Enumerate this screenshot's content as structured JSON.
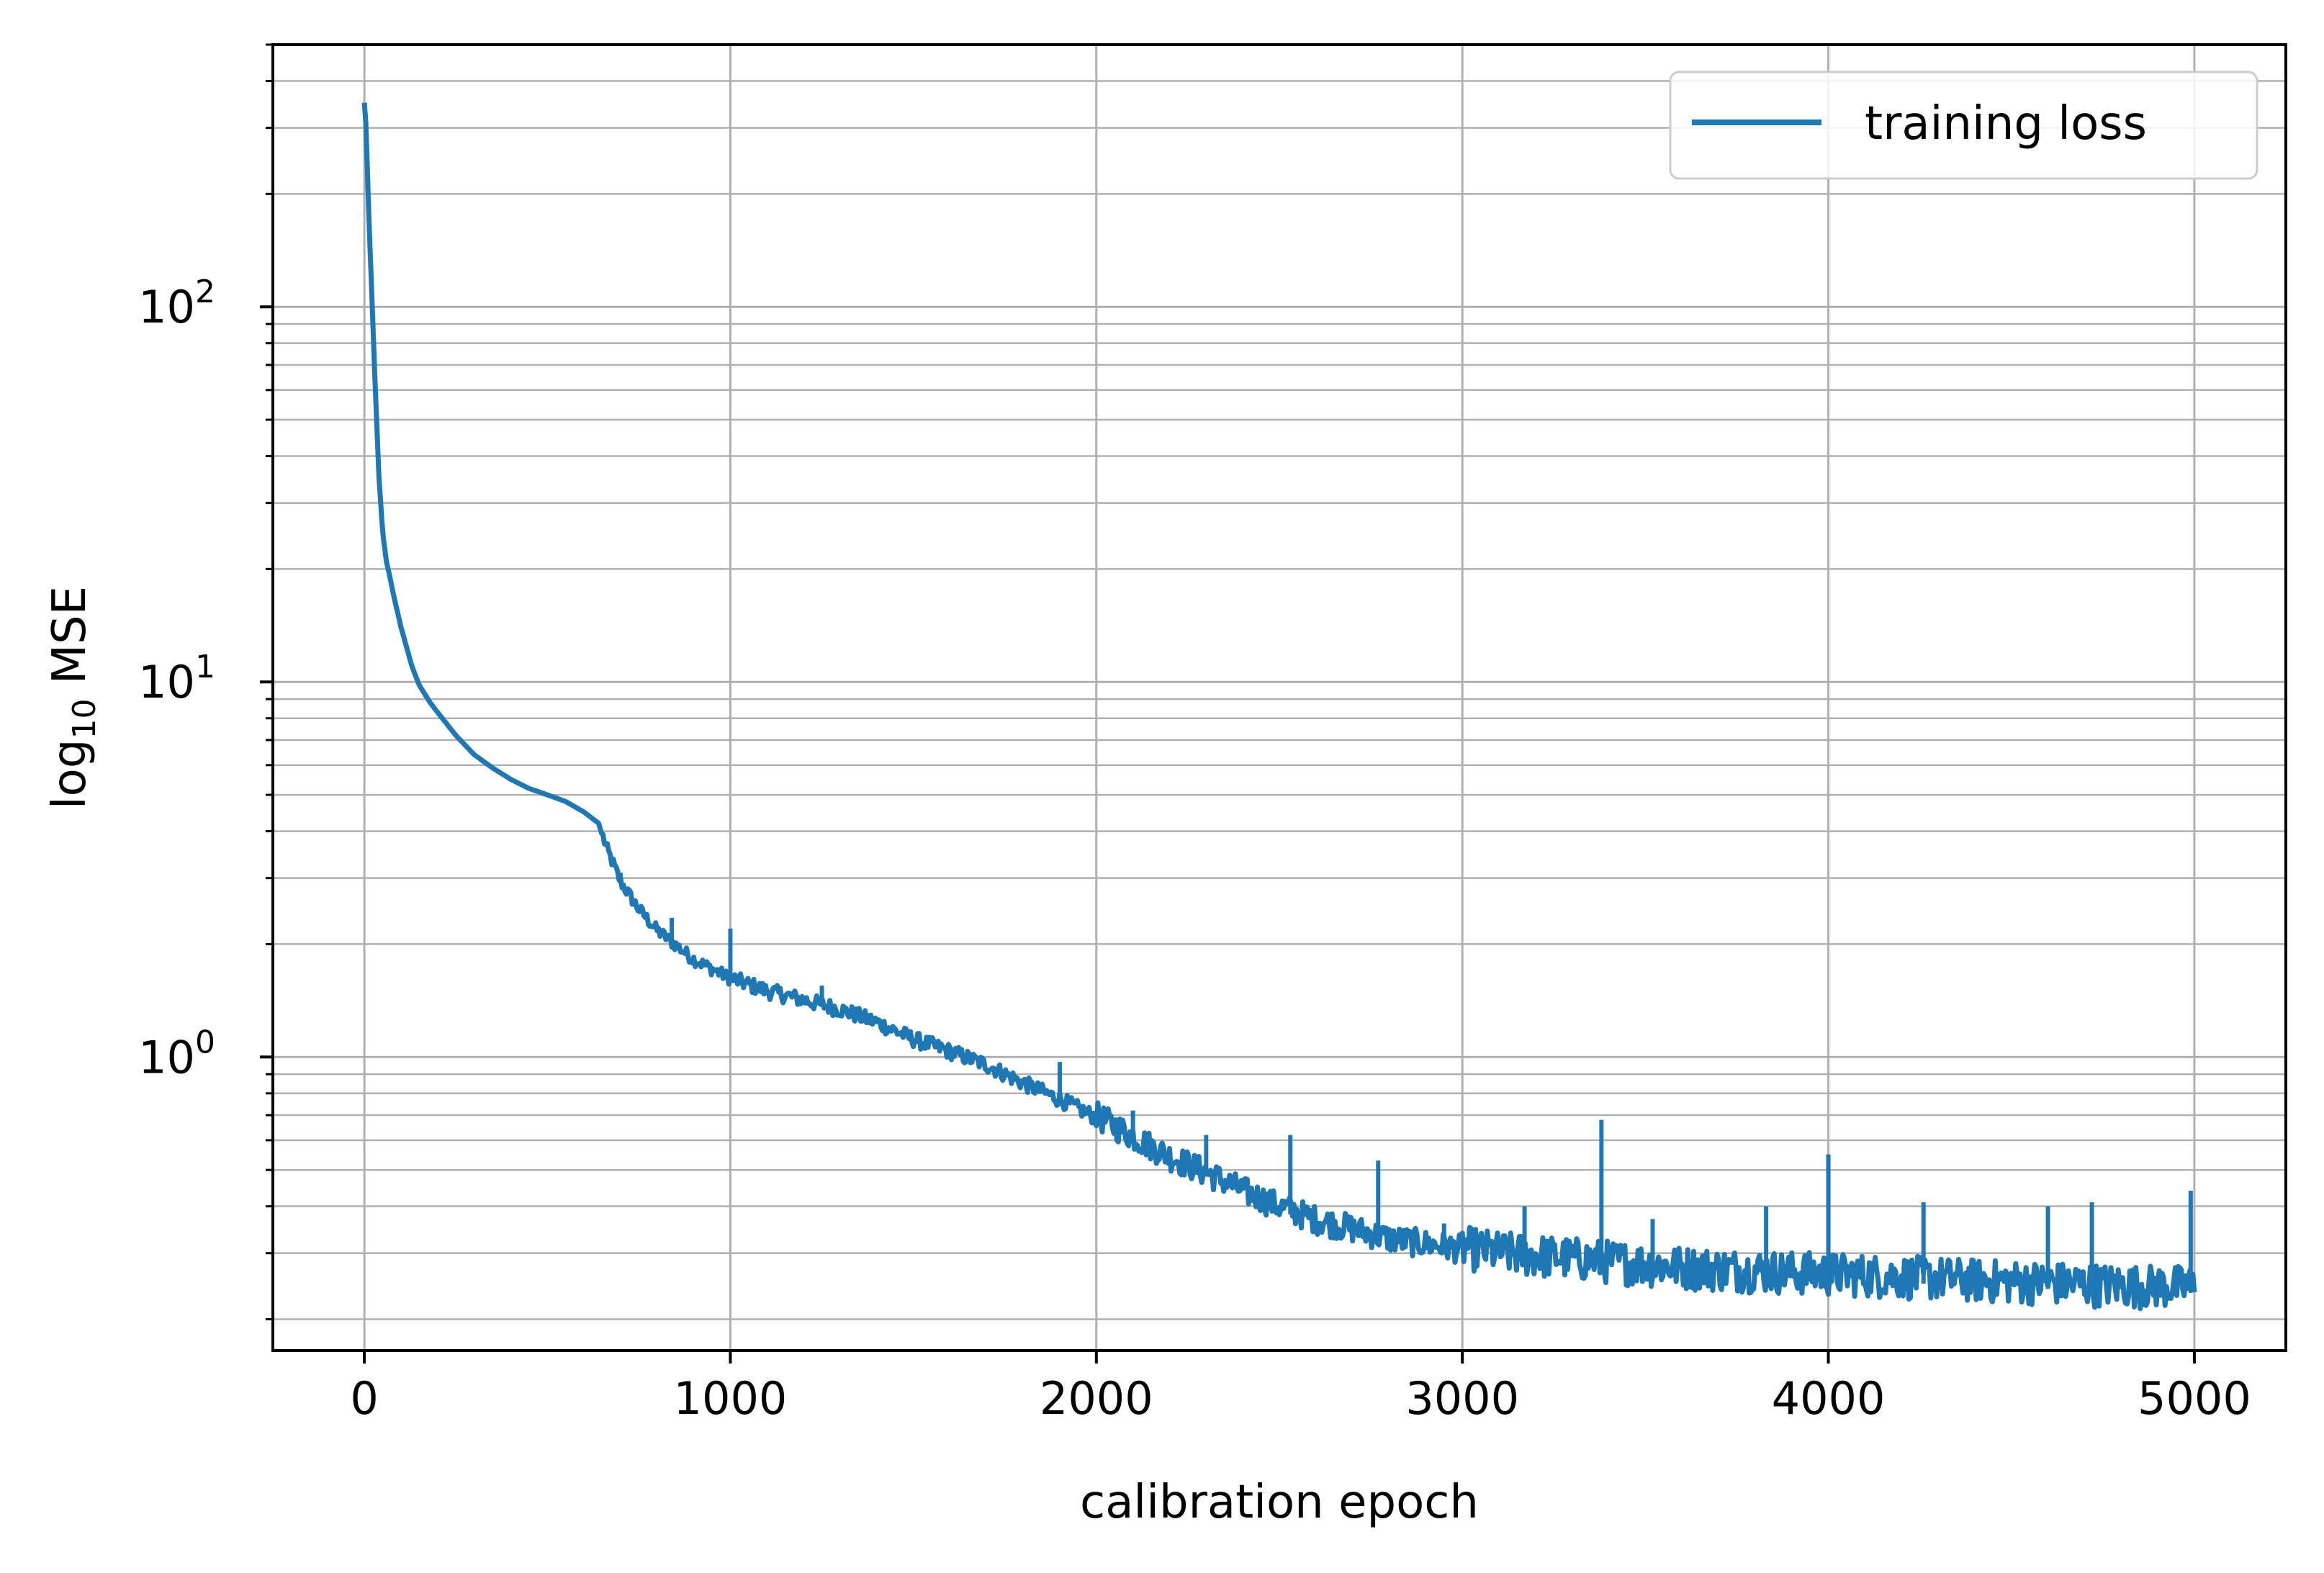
{
  "chart_data": {
    "type": "line",
    "xlabel": "calibration epoch",
    "ylabel_prefix": "log",
    "ylabel_subscript": "10",
    "ylabel_suffix": " MSE",
    "y_scale": "log",
    "xlim": [
      -250,
      5250
    ],
    "ylim": [
      0.165,
      500
    ],
    "x_ticks": [
      0,
      1000,
      2000,
      3000,
      4000,
      5000
    ],
    "x_tick_labels": [
      "0",
      "1000",
      "2000",
      "3000",
      "4000",
      "5000"
    ],
    "y_ticks": [
      {
        "value": 1,
        "base": "10",
        "exp": "0"
      },
      {
        "value": 10,
        "base": "10",
        "exp": "1"
      },
      {
        "value": 100,
        "base": "10",
        "exp": "2"
      }
    ],
    "grid": "major and minor",
    "legend": {
      "position": "upper right",
      "entries": [
        "training loss"
      ]
    },
    "series": [
      {
        "name": "training loss",
        "color": "#1f77b4",
        "x": [
          0,
          5,
          10,
          20,
          30,
          40,
          50,
          60,
          70,
          80,
          100,
          130,
          150,
          180,
          200,
          250,
          300,
          350,
          400,
          450,
          500,
          550,
          600,
          640,
          660,
          700,
          750,
          800,
          900,
          1000,
          1100,
          1200,
          1300,
          1400,
          1500,
          1600,
          1700,
          1800,
          1900,
          2000,
          2100,
          2200,
          2300,
          2400,
          2500,
          2600,
          2700,
          2800,
          2900,
          3000,
          3100,
          3200,
          3300,
          3400,
          3500,
          3600,
          3700,
          3800,
          3900,
          4000,
          4100,
          4200,
          4300,
          4400,
          4500,
          4600,
          4700,
          4800,
          4900,
          5000
        ],
        "y": [
          350,
          300,
          200,
          110,
          60,
          35,
          25,
          21,
          19,
          17,
          14,
          11,
          9.8,
          8.8,
          8.3,
          7.2,
          6.4,
          5.9,
          5.5,
          5.2,
          5.0,
          4.8,
          4.5,
          4.2,
          3.6,
          2.9,
          2.45,
          2.15,
          1.8,
          1.6,
          1.48,
          1.4,
          1.32,
          1.22,
          1.1,
          1.02,
          0.94,
          0.84,
          0.76,
          0.68,
          0.6,
          0.53,
          0.48,
          0.43,
          0.39,
          0.36,
          0.34,
          0.32,
          0.31,
          0.3,
          0.29,
          0.285,
          0.28,
          0.275,
          0.27,
          0.265,
          0.262,
          0.26,
          0.257,
          0.255,
          0.253,
          0.25,
          0.248,
          0.245,
          0.243,
          0.241,
          0.239,
          0.237,
          0.236,
          0.235
        ],
        "spikes": [
          {
            "x": 700,
            "y": 3.1
          },
          {
            "x": 840,
            "y": 2.35
          },
          {
            "x": 1000,
            "y": 2.2
          },
          {
            "x": 1250,
            "y": 1.55
          },
          {
            "x": 1900,
            "y": 0.97
          },
          {
            "x": 2100,
            "y": 0.72
          },
          {
            "x": 2300,
            "y": 0.62
          },
          {
            "x": 2530,
            "y": 0.62
          },
          {
            "x": 2770,
            "y": 0.53
          },
          {
            "x": 2950,
            "y": 0.36
          },
          {
            "x": 3170,
            "y": 0.4
          },
          {
            "x": 3380,
            "y": 0.68
          },
          {
            "x": 3520,
            "y": 0.37
          },
          {
            "x": 3830,
            "y": 0.4
          },
          {
            "x": 4000,
            "y": 0.55
          },
          {
            "x": 4260,
            "y": 0.41
          },
          {
            "x": 4600,
            "y": 0.4
          },
          {
            "x": 4720,
            "y": 0.41
          },
          {
            "x": 4990,
            "y": 0.44
          }
        ]
      }
    ]
  }
}
